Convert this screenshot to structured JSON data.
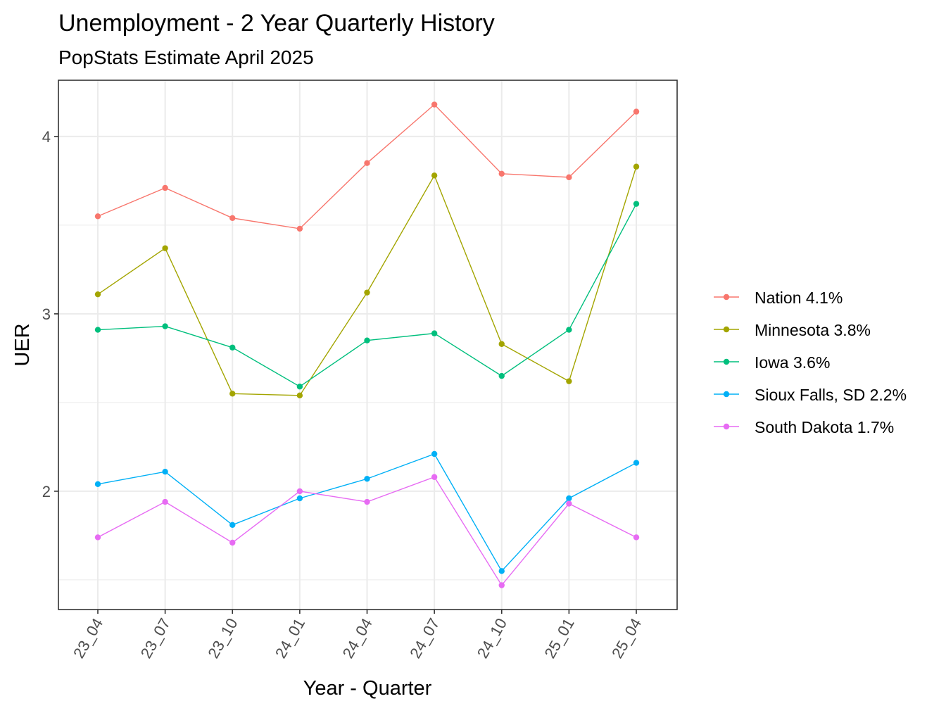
{
  "chart_data": {
    "type": "line",
    "title": "Unemployment - 2 Year Quarterly History",
    "subtitle": "PopStats Estimate April 2025",
    "xlabel": "Year - Quarter",
    "ylabel": "UER",
    "categories": [
      "23_04",
      "23_07",
      "23_10",
      "24_01",
      "24_04",
      "24_07",
      "24_10",
      "25_01",
      "25_04"
    ],
    "ylim": [
      1.333,
      4.317
    ],
    "yticks": [
      2,
      3,
      4
    ],
    "grid": true,
    "legend_position": "right",
    "series": [
      {
        "name": "Nation 4.1%",
        "color": "#F8766D",
        "values": [
          3.55,
          3.71,
          3.54,
          3.48,
          3.85,
          4.18,
          3.79,
          3.77,
          4.14
        ]
      },
      {
        "name": "Minnesota 3.8%",
        "color": "#A3A500",
        "values": [
          3.11,
          3.37,
          2.55,
          2.54,
          3.12,
          3.78,
          2.83,
          2.62,
          3.83
        ]
      },
      {
        "name": "Iowa 3.6%",
        "color": "#00BF7D",
        "values": [
          2.91,
          2.93,
          2.81,
          2.59,
          2.85,
          2.89,
          2.65,
          2.91,
          3.62
        ]
      },
      {
        "name": "Sioux Falls, SD 2.2%",
        "color": "#00B0F6",
        "values": [
          2.04,
          2.11,
          1.81,
          1.96,
          2.07,
          2.21,
          1.55,
          1.96,
          2.16
        ]
      },
      {
        "name": "South Dakota 1.7%",
        "color": "#E76BF3",
        "values": [
          1.74,
          1.94,
          1.71,
          2.0,
          1.94,
          2.08,
          1.47,
          1.93,
          1.74
        ]
      }
    ]
  }
}
